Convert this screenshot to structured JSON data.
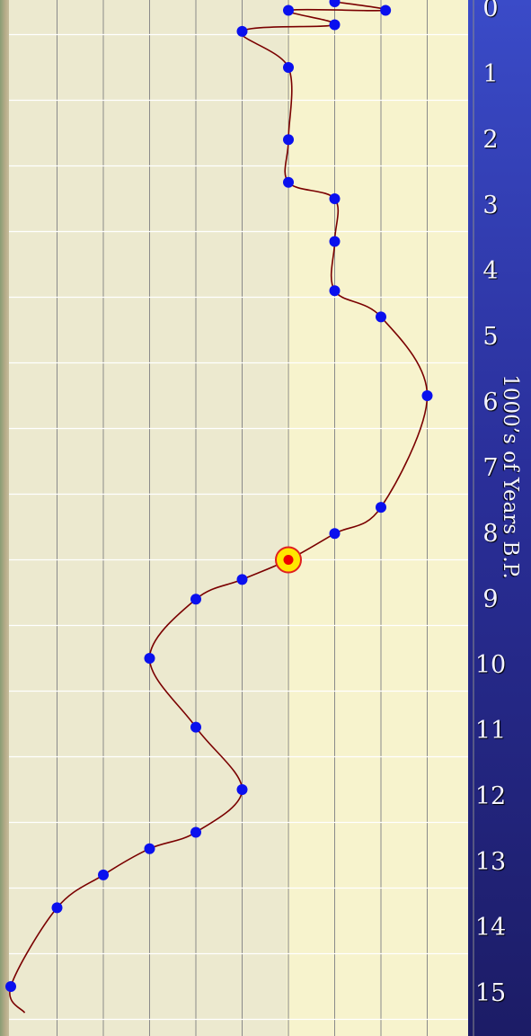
{
  "chart_data": {
    "type": "line",
    "ylabel": "1000’s of Years B.P.",
    "y_ticks": [
      "0",
      "1",
      "2",
      "3",
      "4",
      "5",
      "6",
      "7",
      "8",
      "9",
      "10",
      "11",
      "12",
      "13",
      "14",
      "15"
    ],
    "ylim": [
      0,
      15.4
    ],
    "xlim": [
      0,
      10
    ],
    "grid": true,
    "y_reversed": true,
    "series": [
      {
        "values": [
          {
            "x": 7.0,
            "y": 0.0
          },
          {
            "x": 8.1,
            "y": 0.13
          },
          {
            "x": 6.0,
            "y": 0.13
          },
          {
            "x": 7.0,
            "y": 0.35
          },
          {
            "x": 5.0,
            "y": 0.45
          },
          {
            "x": 6.0,
            "y": 1.0
          },
          {
            "x": 6.0,
            "y": 2.1
          },
          {
            "x": 6.0,
            "y": 2.75
          },
          {
            "x": 7.0,
            "y": 3.0
          },
          {
            "x": 7.0,
            "y": 3.65
          },
          {
            "x": 7.0,
            "y": 4.4
          },
          {
            "x": 8.0,
            "y": 4.8
          },
          {
            "x": 9.0,
            "y": 6.0
          },
          {
            "x": 8.0,
            "y": 7.7
          },
          {
            "x": 7.0,
            "y": 8.1
          },
          {
            "x": 6.0,
            "y": 8.5
          },
          {
            "x": 5.0,
            "y": 8.8
          },
          {
            "x": 4.0,
            "y": 9.1
          },
          {
            "x": 3.0,
            "y": 10.0
          },
          {
            "x": 4.0,
            "y": 11.05
          },
          {
            "x": 5.0,
            "y": 12.0
          },
          {
            "x": 4.0,
            "y": 12.65
          },
          {
            "x": 3.0,
            "y": 12.9
          },
          {
            "x": 2.0,
            "y": 13.3
          },
          {
            "x": 1.0,
            "y": 13.8
          },
          {
            "x": 0.0,
            "y": 15.0
          },
          {
            "x": 0.3,
            "y": 15.4
          }
        ]
      }
    ],
    "highlight_index": 15,
    "colors": {
      "line": "#7a0000",
      "point": "#0a10ee",
      "highlight_ring": "#ffe600",
      "highlight_center": "#ee0000",
      "grid_vertical": "#8a8a8a",
      "grid_horizontal": "#ffffff"
    }
  }
}
